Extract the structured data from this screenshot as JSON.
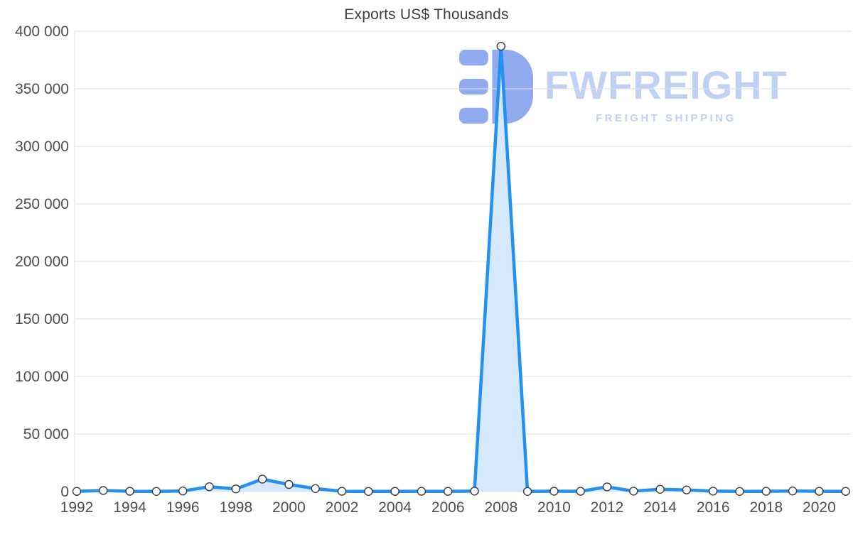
{
  "chart_data": {
    "type": "area",
    "title": "Exports US$ Thousands",
    "x": [
      1992,
      1993,
      1994,
      1995,
      1996,
      1997,
      1998,
      1999,
      2000,
      2001,
      2002,
      2003,
      2004,
      2005,
      2006,
      2007,
      2008,
      2009,
      2010,
      2011,
      2012,
      2013,
      2014,
      2015,
      2016,
      2017,
      2018,
      2019,
      2020,
      2021
    ],
    "values": [
      200,
      900,
      250,
      150,
      500,
      4200,
      2300,
      10800,
      6200,
      2600,
      250,
      150,
      200,
      250,
      200,
      400,
      387000,
      150,
      300,
      250,
      4100,
      400,
      2000,
      1400,
      350,
      150,
      250,
      500,
      250,
      200
    ],
    "xlabel": "",
    "ylabel": "",
    "ylim": [
      0,
      400000
    ],
    "ytick_step": 50000,
    "ytick_labels": [
      "0",
      "50 000",
      "100 000",
      "150 000",
      "200 000",
      "250 000",
      "300 000",
      "350 000",
      "400 000"
    ],
    "xtick_labels": [
      "1992",
      "1994",
      "1996",
      "1998",
      "2000",
      "2002",
      "2004",
      "2006",
      "2008",
      "2010",
      "2012",
      "2014",
      "2016",
      "2018",
      "2020"
    ],
    "grid": true,
    "legend_position": "none",
    "colors": {
      "line": "#2291f0",
      "fill": "#d6e8fb",
      "marker_fill": "#ffffff",
      "marker_stroke": "#3c3c3c",
      "grid": "#e2e2e2",
      "axis_text": "#4e4e4e"
    }
  },
  "watermark": {
    "brand": "FWFREIGHT",
    "tagline": "FREIGHT SHIPPING",
    "icon_color": "#7e9cee",
    "text_color": "#b7c9f2"
  }
}
